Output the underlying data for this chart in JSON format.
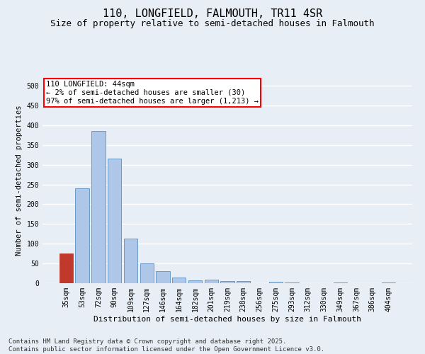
{
  "title": "110, LONGFIELD, FALMOUTH, TR11 4SR",
  "subtitle": "Size of property relative to semi-detached houses in Falmouth",
  "xlabel": "Distribution of semi-detached houses by size in Falmouth",
  "ylabel": "Number of semi-detached properties",
  "categories": [
    "35sqm",
    "53sqm",
    "72sqm",
    "90sqm",
    "109sqm",
    "127sqm",
    "146sqm",
    "164sqm",
    "182sqm",
    "201sqm",
    "219sqm",
    "238sqm",
    "256sqm",
    "275sqm",
    "293sqm",
    "312sqm",
    "330sqm",
    "349sqm",
    "367sqm",
    "386sqm",
    "404sqm"
  ],
  "values": [
    75,
    240,
    385,
    315,
    113,
    50,
    30,
    14,
    8,
    9,
    6,
    5,
    0,
    3,
    1,
    0,
    0,
    1,
    0,
    0,
    1
  ],
  "bar_color": "#aec6e8",
  "bar_edge_color": "#5a8fc0",
  "highlight_bar_index": 0,
  "highlight_color": "#c0392b",
  "highlight_edge_color": "#c0392b",
  "annotation_text": "110 LONGFIELD: 44sqm\n← 2% of semi-detached houses are smaller (30)\n97% of semi-detached houses are larger (1,213) →",
  "ylim": [
    0,
    520
  ],
  "yticks": [
    0,
    50,
    100,
    150,
    200,
    250,
    300,
    350,
    400,
    450,
    500
  ],
  "background_color": "#e8eef5",
  "plot_bg_color": "#e8eef5",
  "grid_color": "#ffffff",
  "footer_text": "Contains HM Land Registry data © Crown copyright and database right 2025.\nContains public sector information licensed under the Open Government Licence v3.0.",
  "title_fontsize": 11,
  "subtitle_fontsize": 9,
  "xlabel_fontsize": 8,
  "ylabel_fontsize": 7.5,
  "tick_fontsize": 7,
  "annotation_fontsize": 7.5,
  "footer_fontsize": 6.5
}
